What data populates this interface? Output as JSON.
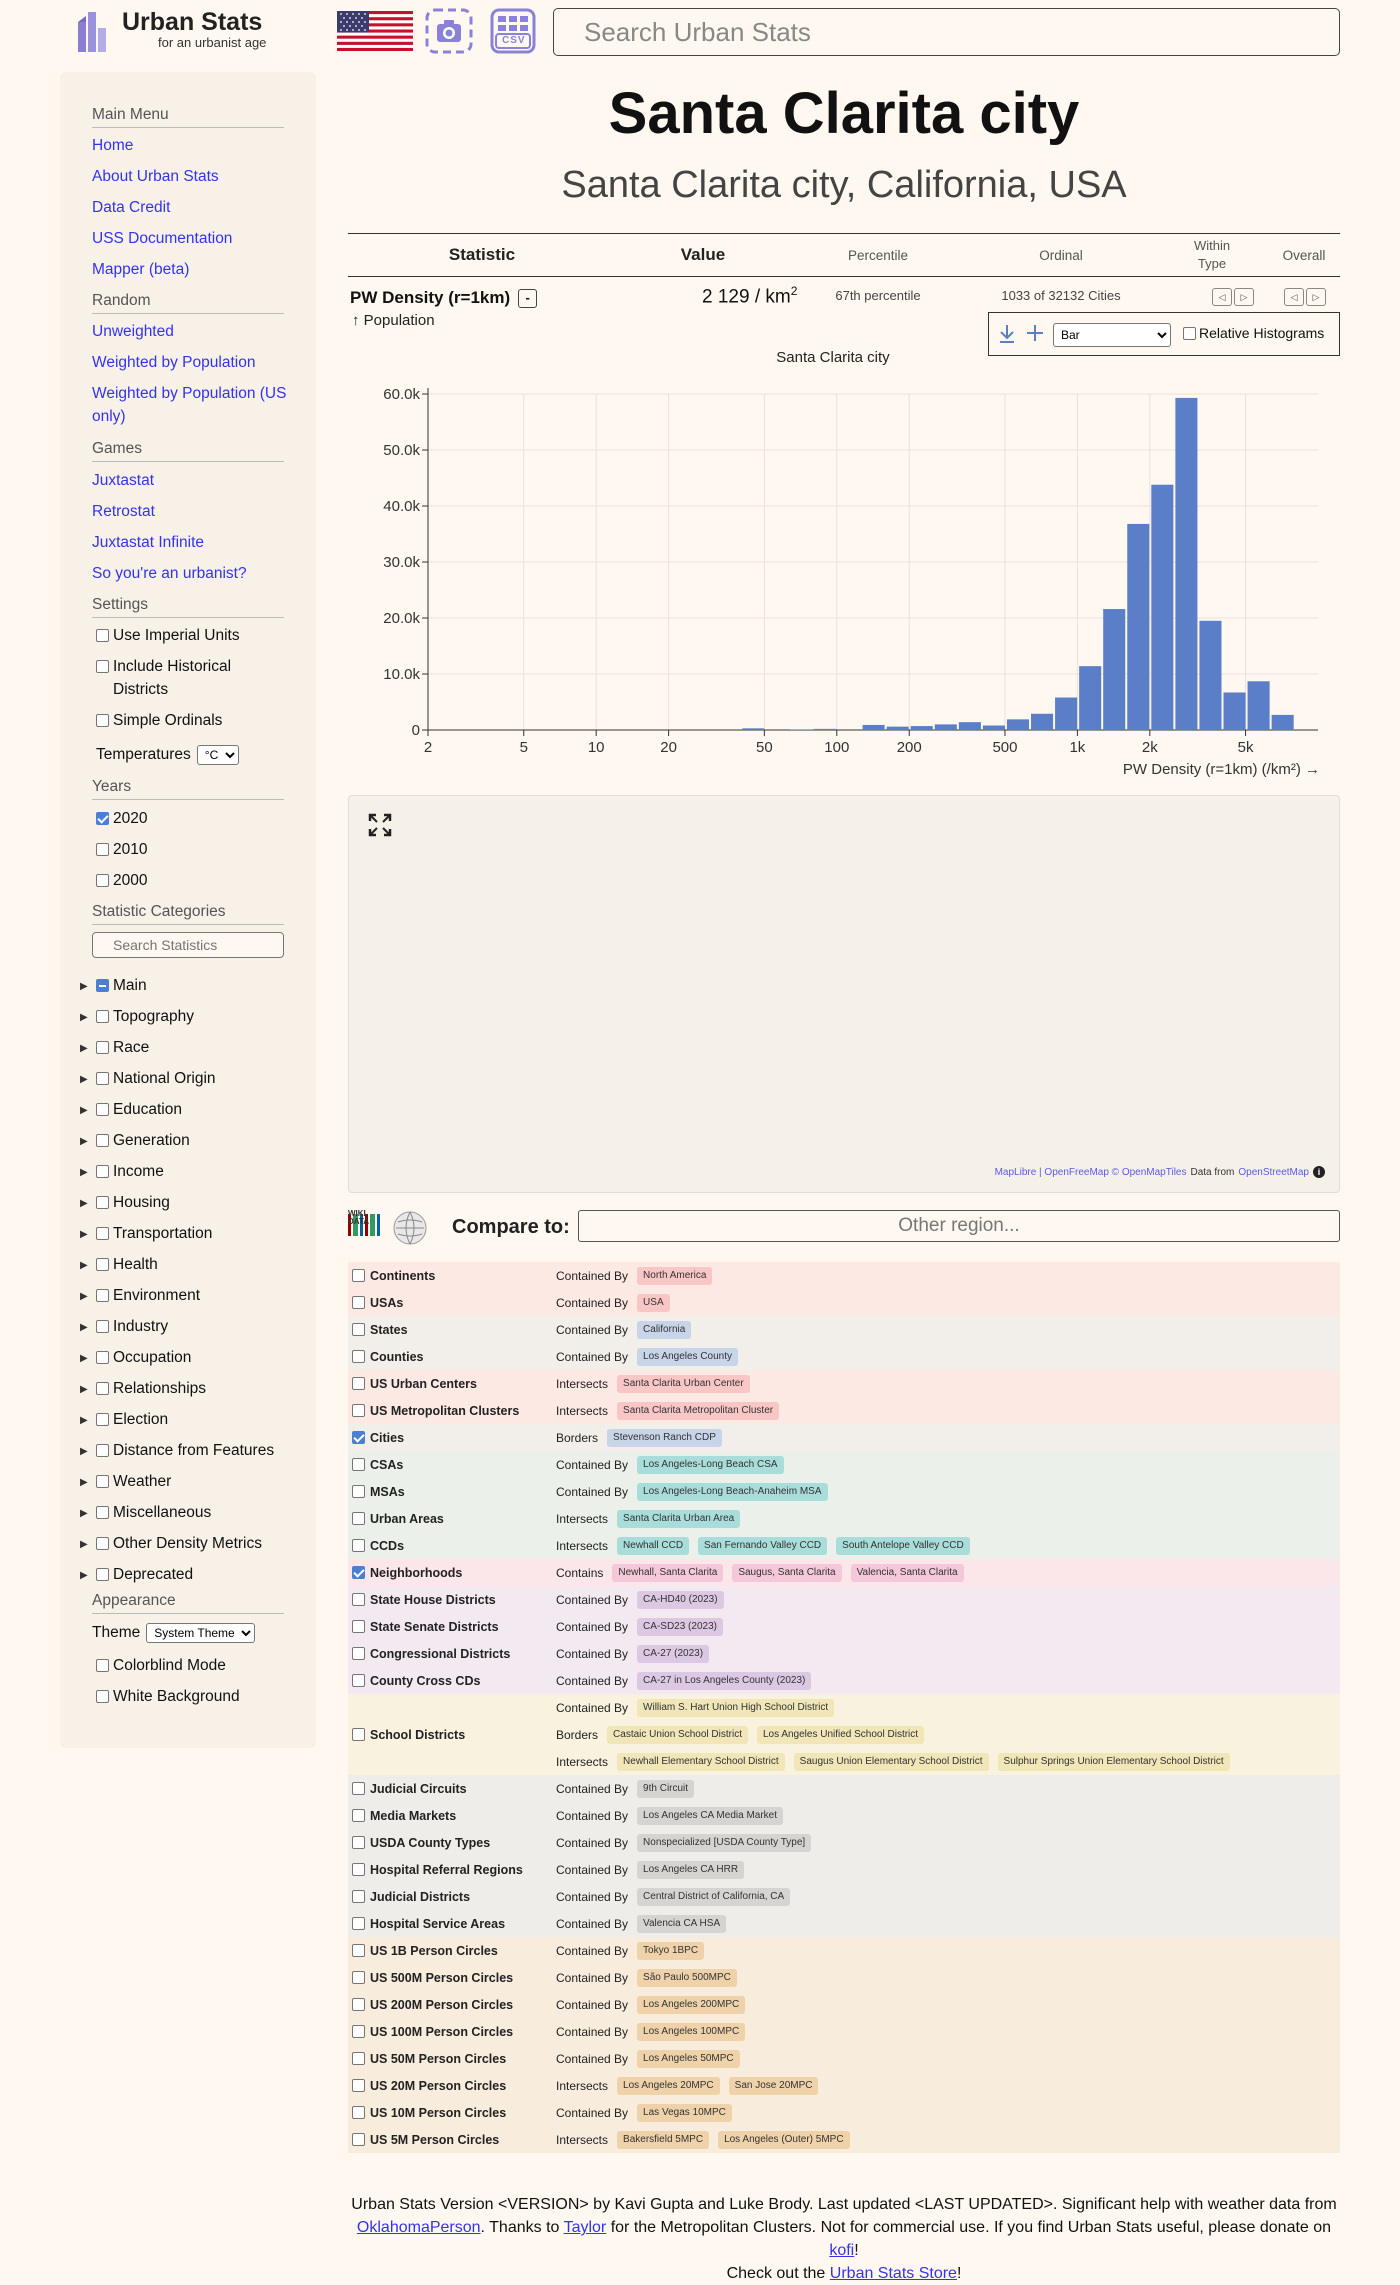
{
  "header": {
    "brand_title": "Urban Stats",
    "brand_tagline": "for an urbanist age",
    "csv_label": "CSV",
    "search_placeholder": "Search Urban Stats"
  },
  "sidebar": {
    "main_menu_heading": "Main Menu",
    "main_menu": [
      "Home",
      "About Urban Stats",
      "Data Credit",
      "USS Documentation",
      "Mapper (beta)"
    ],
    "random_heading": "Random",
    "random": [
      "Unweighted",
      "Weighted by Population",
      "Weighted by Population (US only)"
    ],
    "games_heading": "Games",
    "games": [
      "Juxtastat",
      "Retrostat",
      "Juxtastat Infinite",
      "So you're an urbanist?"
    ],
    "settings_heading": "Settings",
    "settings": [
      {
        "label": "Use Imperial Units",
        "checked": false
      },
      {
        "label": "Include Historical Districts",
        "checked": false
      },
      {
        "label": "Simple Ordinals",
        "checked": false
      }
    ],
    "temperatures_label": "Temperatures",
    "temperatures_value": "°C",
    "years_heading": "Years",
    "years": [
      {
        "label": "2020",
        "checked": true
      },
      {
        "label": "2010",
        "checked": false
      },
      {
        "label": "2000",
        "checked": false
      }
    ],
    "categories_heading": "Statistic Categories",
    "categories_search_placeholder": "Search Statistics",
    "categories": [
      "Main",
      "Topography",
      "Race",
      "National Origin",
      "Education",
      "Generation",
      "Income",
      "Housing",
      "Transportation",
      "Health",
      "Environment",
      "Industry",
      "Occupation",
      "Relationships",
      "Election",
      "Distance from Features",
      "Weather",
      "Miscellaneous",
      "Other Density Metrics",
      "Deprecated"
    ],
    "appearance_heading": "Appearance",
    "theme_label": "Theme",
    "theme_value": "System Theme",
    "appearance": [
      {
        "label": "Colorblind Mode",
        "checked": false
      },
      {
        "label": "White Background",
        "checked": false
      }
    ]
  },
  "page": {
    "title": "Santa Clarita city",
    "subtitle": "Santa Clarita city, California, USA"
  },
  "table": {
    "headers": {
      "statistic": "Statistic",
      "value": "Value",
      "percentile": "Percentile",
      "ordinal": "Ordinal",
      "within_type": "Within Type",
      "overall": "Overall"
    },
    "row": {
      "name": "PW Density (r=1km)",
      "toggle": "-",
      "sub": "↑ Population",
      "value": "2 129",
      "unit": "/ km",
      "unit_sup": "2",
      "percentile": "67th percentile",
      "ordinal": "1033 of 32132 Cities"
    }
  },
  "histogram_controls": {
    "type_value": "Bar",
    "relative_label": "Relative Histograms"
  },
  "chart_data": {
    "type": "bar",
    "title": "Santa Clarita city",
    "xlabel": "PW Density (r=1km) (/km²) →",
    "ylabel": "",
    "x_scale": "log",
    "x_ticks": [
      2,
      5,
      10,
      20,
      50,
      100,
      200,
      500,
      1000,
      2000,
      5000
    ],
    "x_tick_labels": [
      "2",
      "5",
      "10",
      "20",
      "50",
      "100",
      "200",
      "500",
      "1k",
      "2k",
      "5k"
    ],
    "y_ticks": [
      0,
      10000,
      20000,
      30000,
      40000,
      50000,
      60000
    ],
    "y_tick_labels": [
      "0",
      "10.0k",
      "20.0k",
      "30.0k",
      "40.0k",
      "50.0k",
      "60.0k"
    ],
    "xlim": [
      2,
      10000
    ],
    "ylim": [
      0,
      60000
    ],
    "grid": true,
    "bins": [
      {
        "x0": 40.1,
        "x1": 50.5,
        "value": 300
      },
      {
        "x0": 63.5,
        "x1": 80.0,
        "value": 100
      },
      {
        "x0": 80.0,
        "x1": 100.7,
        "value": 200
      },
      {
        "x0": 126.8,
        "x1": 159.6,
        "value": 900
      },
      {
        "x0": 159.6,
        "x1": 200.9,
        "value": 600
      },
      {
        "x0": 200.9,
        "x1": 253.0,
        "value": 700
      },
      {
        "x0": 253.0,
        "x1": 318.5,
        "value": 1000
      },
      {
        "x0": 318.5,
        "x1": 401.0,
        "value": 1400
      },
      {
        "x0": 401.0,
        "x1": 504.8,
        "value": 800
      },
      {
        "x0": 504.8,
        "x1": 635.5,
        "value": 1900
      },
      {
        "x0": 635.5,
        "x1": 800.0,
        "value": 2900
      },
      {
        "x0": 800.0,
        "x1": 1007.2,
        "value": 5800
      },
      {
        "x0": 1007.2,
        "x1": 1268.0,
        "value": 11400
      },
      {
        "x0": 1268.0,
        "x1": 1596.2,
        "value": 21600
      },
      {
        "x0": 1596.2,
        "x1": 2009.6,
        "value": 36800
      },
      {
        "x0": 2009.6,
        "x1": 2529.9,
        "value": 43800
      },
      {
        "x0": 2529.9,
        "x1": 3184.9,
        "value": 59300
      },
      {
        "x0": 3184.9,
        "x1": 4009.6,
        "value": 19500
      },
      {
        "x0": 4009.6,
        "x1": 5047.9,
        "value": 6700
      },
      {
        "x0": 5047.9,
        "x1": 6354.9,
        "value": 8700
      },
      {
        "x0": 6354.9,
        "x1": 8000.5,
        "value": 2700
      }
    ],
    "bar_color": "#5a7fc8"
  },
  "map": {
    "attribution_links": "MapLibre | OpenFreeMap © OpenMapTiles",
    "attribution_plain": "Data from",
    "attribution_osm": "OpenStreetMap"
  },
  "compare": {
    "wiki_label": "WIKI DATA",
    "label": "Compare to:",
    "placeholder": "Other region..."
  },
  "related": [
    {
      "type": "Continents",
      "checked": false,
      "bg": "#fce9e3",
      "lines": [
        {
          "kind": "Contained By",
          "items": [
            "North America"
          ]
        }
      ],
      "pill": "#f9c6c6"
    },
    {
      "type": "USAs",
      "checked": false,
      "bg": "#fce9e3",
      "lines": [
        {
          "kind": "Contained By",
          "items": [
            "USA"
          ]
        }
      ],
      "pill": "#f9c6c6"
    },
    {
      "type": "States",
      "checked": false,
      "bg": "#f2eee9",
      "lines": [
        {
          "kind": "Contained By",
          "items": [
            "California"
          ]
        }
      ],
      "pill": "#c8d4e8"
    },
    {
      "type": "Counties",
      "checked": false,
      "bg": "#f2eee9",
      "lines": [
        {
          "kind": "Contained By",
          "items": [
            "Los Angeles County"
          ]
        }
      ],
      "pill": "#c8d4e8"
    },
    {
      "type": "US Urban Centers",
      "checked": false,
      "bg": "#fce9e3",
      "lines": [
        {
          "kind": "Intersects",
          "items": [
            "Santa Clarita Urban Center"
          ]
        }
      ],
      "pill": "#f9c6c6"
    },
    {
      "type": "US Metropolitan Clusters",
      "checked": false,
      "bg": "#fce9e3",
      "lines": [
        {
          "kind": "Intersects",
          "items": [
            "Santa Clarita Metropolitan Cluster"
          ]
        }
      ],
      "pill": "#f9c6c6"
    },
    {
      "type": "Cities",
      "checked": true,
      "bg": "#f2eee9",
      "lines": [
        {
          "kind": "Borders",
          "items": [
            "Stevenson Ranch CDP"
          ]
        }
      ],
      "pill": "#c8d4e8"
    },
    {
      "type": "CSAs",
      "checked": false,
      "bg": "#ebf0ea",
      "lines": [
        {
          "kind": "Contained By",
          "items": [
            "Los Angeles-Long Beach CSA"
          ]
        }
      ],
      "pill": "#a9ddd9"
    },
    {
      "type": "MSAs",
      "checked": false,
      "bg": "#ebf0ea",
      "lines": [
        {
          "kind": "Contained By",
          "items": [
            "Los Angeles-Long Beach-Anaheim MSA"
          ]
        }
      ],
      "pill": "#a9ddd9"
    },
    {
      "type": "Urban Areas",
      "checked": false,
      "bg": "#ebf0ea",
      "lines": [
        {
          "kind": "Intersects",
          "items": [
            "Santa Clarita Urban Area"
          ]
        }
      ],
      "pill": "#a9ddd9"
    },
    {
      "type": "CCDs",
      "checked": false,
      "bg": "#ebf0ea",
      "lines": [
        {
          "kind": "Intersects",
          "items": [
            "Newhall CCD",
            "San Fernando Valley CCD",
            "South Antelope Valley CCD"
          ]
        }
      ],
      "pill": "#a9ddd9"
    },
    {
      "type": "Neighborhoods",
      "checked": true,
      "bg": "#fbe6ea",
      "lines": [
        {
          "kind": "Contains",
          "items": [
            "Newhall, Santa Clarita",
            "Saugus, Santa Clarita",
            "Valencia, Santa Clarita"
          ]
        }
      ],
      "pill": "#f4c8d8"
    },
    {
      "type": "State House Districts",
      "checked": false,
      "bg": "#f2eaf0",
      "lines": [
        {
          "kind": "Contained By",
          "items": [
            "CA-HD40 (2023)"
          ]
        }
      ],
      "pill": "#ddc8e4"
    },
    {
      "type": "State Senate Districts",
      "checked": false,
      "bg": "#f2eaf0",
      "lines": [
        {
          "kind": "Contained By",
          "items": [
            "CA-SD23 (2023)"
          ]
        }
      ],
      "pill": "#ddc8e4"
    },
    {
      "type": "Congressional Districts",
      "checked": false,
      "bg": "#f2eaf0",
      "lines": [
        {
          "kind": "Contained By",
          "items": [
            "CA-27 (2023)"
          ]
        }
      ],
      "pill": "#ddc8e4"
    },
    {
      "type": "County Cross CDs",
      "checked": false,
      "bg": "#f2eaf0",
      "lines": [
        {
          "kind": "Contained By",
          "items": [
            "CA-27 in Los Angeles County (2023)"
          ]
        }
      ],
      "pill": "#ddc8e4"
    },
    {
      "type": "School Districts",
      "checked": false,
      "bg": "#f8f2de",
      "lines": [
        {
          "kind": "Contained By",
          "items": [
            "William S. Hart Union High School District"
          ]
        },
        {
          "kind": "Borders",
          "items": [
            "Castaic Union School District",
            "Los Angeles Unified School District"
          ]
        },
        {
          "kind": "Intersects",
          "items": [
            "Newhall Elementary School District",
            "Saugus Union Elementary School District",
            "Sulphur Springs Union Elementary School District"
          ]
        }
      ],
      "pill": "#f0e6b8"
    },
    {
      "type": "Judicial Circuits",
      "checked": false,
      "bg": "#efedea",
      "lines": [
        {
          "kind": "Contained By",
          "items": [
            "9th Circuit"
          ]
        }
      ],
      "pill": "#d6d4d2"
    },
    {
      "type": "Media Markets",
      "checked": false,
      "bg": "#efedea",
      "lines": [
        {
          "kind": "Contained By",
          "items": [
            "Los Angeles CA Media Market"
          ]
        }
      ],
      "pill": "#d6d4d2"
    },
    {
      "type": "USDA County Types",
      "checked": false,
      "bg": "#efedea",
      "lines": [
        {
          "kind": "Contained By",
          "items": [
            "Nonspecialized [USDA County Type]"
          ]
        }
      ],
      "pill": "#d6d4d2"
    },
    {
      "type": "Hospital Referral Regions",
      "checked": false,
      "bg": "#efedea",
      "lines": [
        {
          "kind": "Contained By",
          "items": [
            "Los Angeles CA HRR"
          ]
        }
      ],
      "pill": "#d6d4d2"
    },
    {
      "type": "Judicial Districts",
      "checked": false,
      "bg": "#efedea",
      "lines": [
        {
          "kind": "Contained By",
          "items": [
            "Central District of California, CA"
          ]
        }
      ],
      "pill": "#d6d4d2"
    },
    {
      "type": "Hospital Service Areas",
      "checked": false,
      "bg": "#efedea",
      "lines": [
        {
          "kind": "Contained By",
          "items": [
            "Valencia CA HSA"
          ]
        }
      ],
      "pill": "#d6d4d2"
    },
    {
      "type": "US 1B Person Circles",
      "checked": false,
      "bg": "#f8ecdc",
      "lines": [
        {
          "kind": "Contained By",
          "items": [
            "Tokyo 1BPC"
          ]
        }
      ],
      "pill": "#efd2aa"
    },
    {
      "type": "US 500M Person Circles",
      "checked": false,
      "bg": "#f8ecdc",
      "lines": [
        {
          "kind": "Contained By",
          "items": [
            "São Paulo 500MPC"
          ]
        }
      ],
      "pill": "#efd2aa"
    },
    {
      "type": "US 200M Person Circles",
      "checked": false,
      "bg": "#f8ecdc",
      "lines": [
        {
          "kind": "Contained By",
          "items": [
            "Los Angeles 200MPC"
          ]
        }
      ],
      "pill": "#efd2aa"
    },
    {
      "type": "US 100M Person Circles",
      "checked": false,
      "bg": "#f8ecdc",
      "lines": [
        {
          "kind": "Contained By",
          "items": [
            "Los Angeles 100MPC"
          ]
        }
      ],
      "pill": "#efd2aa"
    },
    {
      "type": "US 50M Person Circles",
      "checked": false,
      "bg": "#f8ecdc",
      "lines": [
        {
          "kind": "Contained By",
          "items": [
            "Los Angeles 50MPC"
          ]
        }
      ],
      "pill": "#efd2aa"
    },
    {
      "type": "US 20M Person Circles",
      "checked": false,
      "bg": "#f8ecdc",
      "lines": [
        {
          "kind": "Intersects",
          "items": [
            "Los Angeles 20MPC",
            "San Jose 20MPC"
          ]
        }
      ],
      "pill": "#efd2aa"
    },
    {
      "type": "US 10M Person Circles",
      "checked": false,
      "bg": "#f8ecdc",
      "lines": [
        {
          "kind": "Contained By",
          "items": [
            "Las Vegas 10MPC"
          ]
        }
      ],
      "pill": "#efd2aa"
    },
    {
      "type": "US 5M Person Circles",
      "checked": false,
      "bg": "#f8ecdc",
      "lines": [
        {
          "kind": "Intersects",
          "items": [
            "Bakersfield 5MPC",
            "Los Angeles (Outer) 5MPC"
          ]
        }
      ],
      "pill": "#efd2aa"
    }
  ],
  "footer": {
    "p1": "Urban Stats Version <VERSION> by Kavi Gupta and Luke Brody. Last updated <LAST UPDATED>. Significant help with weather data from",
    "link1": "OklahomaPerson",
    "p2": ". Thanks to",
    "link2": "Taylor",
    "p3": "for the Metropolitan Clusters. Not for commercial use. If you find Urban Stats useful, please donate on",
    "link3": "kofi",
    "p4": "!",
    "p5": "Check out the",
    "link4": "Urban Stats Store",
    "p6": "!"
  }
}
